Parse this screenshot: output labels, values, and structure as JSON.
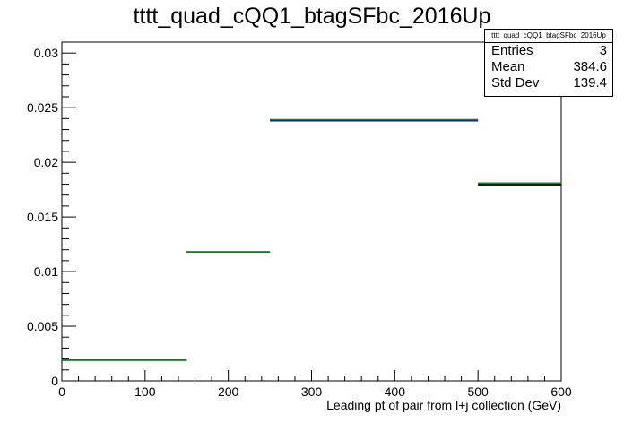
{
  "chart_data": {
    "type": "histogram",
    "title": "tttt_quad_cQQ1_btagSFbc_2016Up",
    "xlabel": "Leading pt of pair from l+j collection (GeV)",
    "ylabel": "",
    "xlim": [
      0,
      600
    ],
    "ylim": [
      0,
      0.031
    ],
    "x_ticks": [
      0,
      100,
      200,
      300,
      400,
      500,
      600
    ],
    "x_tick_labels": [
      "0",
      "100",
      "200",
      "300",
      "400",
      "500",
      "600"
    ],
    "y_ticks": [
      0,
      0.005,
      0.01,
      0.015,
      0.02,
      0.025,
      0.03
    ],
    "y_tick_labels": [
      "0",
      "0.005",
      "0.01",
      "0.015",
      "0.02",
      "0.025",
      "0.03"
    ],
    "bins": [
      {
        "x_low": 0,
        "x_high": 150,
        "value": 0.0019
      },
      {
        "x_low": 150,
        "x_high": 250,
        "value": 0.0118
      },
      {
        "x_low": 250,
        "x_high": 500,
        "value": 0.0239
      },
      {
        "x_low": 500,
        "x_high": 600,
        "value": 0.018
      }
    ],
    "series": [
      {
        "name": "",
        "color": "#000000",
        "values": [
          0.0019,
          0.0118,
          0.0239,
          0.018
        ]
      },
      {
        "name": "",
        "color": "#0000cc",
        "values": [
          0.0019,
          0.0118,
          0.0238,
          0.0179
        ]
      },
      {
        "name": "",
        "color": "#009900",
        "values": [
          0.0019,
          0.0118,
          0.0239,
          0.0181
        ]
      }
    ],
    "grid": false,
    "legend": "none"
  },
  "stats_box": {
    "name": "tttt_quad_cQQ1_btagSFbc_2016Up",
    "entries_label": "Entries",
    "entries_value": "3",
    "mean_label": "Mean",
    "mean_value": "384.6",
    "stddev_label": "Std Dev",
    "stddev_value": "139.4"
  }
}
